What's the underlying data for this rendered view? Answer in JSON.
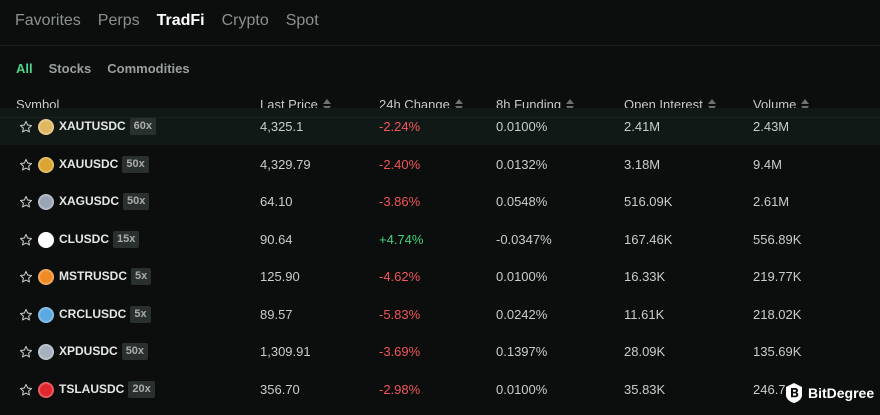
{
  "tabs": [
    "Favorites",
    "Perps",
    "TradFi",
    "Crypto",
    "Spot"
  ],
  "active_tab": "TradFi",
  "subtabs": [
    "All",
    "Stocks",
    "Commodities"
  ],
  "active_subtab": "All",
  "columns": [
    "Symbol",
    "Last Price",
    "24h Change",
    "8h Funding",
    "Open Interest",
    "Volume"
  ],
  "rows": [
    {
      "symbol": "XAUTUSDC",
      "leverage": "60x",
      "icon": "tether-gold-coin-icon",
      "icon_color": "#e0b862",
      "price": "4,325.1",
      "change": "-2.24%",
      "funding": "0.0100%",
      "oi": "2.41M",
      "volume": "2.43M"
    },
    {
      "symbol": "XAUUSDC",
      "leverage": "50x",
      "icon": "gold-coin-icon",
      "icon_color": "#d9a530",
      "price": "4,329.79",
      "change": "-2.40%",
      "funding": "0.0132%",
      "oi": "3.18M",
      "volume": "9.4M"
    },
    {
      "symbol": "XAGUSDC",
      "leverage": "50x",
      "icon": "silver-coin-icon",
      "icon_color": "#9aa4b5",
      "price": "64.10",
      "change": "-3.86%",
      "funding": "0.0548%",
      "oi": "516.09K",
      "volume": "2.61M"
    },
    {
      "symbol": "CLUSDC",
      "leverage": "15x",
      "icon": "oil-drop-icon",
      "icon_color": "#ffffff",
      "price": "90.64",
      "change": "+4.74%",
      "funding": "-0.0347%",
      "oi": "167.46K",
      "volume": "556.89K"
    },
    {
      "symbol": "MSTRUSDC",
      "leverage": "5x",
      "icon": "bitcoin-coin-icon",
      "icon_color": "#f08a24",
      "price": "125.90",
      "change": "-4.62%",
      "funding": "0.0100%",
      "oi": "16.33K",
      "volume": "219.77K"
    },
    {
      "symbol": "CRCLUSDC",
      "leverage": "5x",
      "icon": "circle-coin-icon",
      "icon_color": "#5aa9e0",
      "price": "89.57",
      "change": "-5.83%",
      "funding": "0.0242%",
      "oi": "11.61K",
      "volume": "218.02K"
    },
    {
      "symbol": "XPDUSDC",
      "leverage": "50x",
      "icon": "palladium-coin-icon",
      "icon_color": "#a7b0bd",
      "price": "1,309.91",
      "change": "-3.69%",
      "funding": "0.1397%",
      "oi": "28.09K",
      "volume": "135.69K"
    },
    {
      "symbol": "TSLAUSDC",
      "leverage": "20x",
      "icon": "tesla-coin-icon",
      "icon_color": "#e0262d",
      "price": "356.70",
      "change": "-2.98%",
      "funding": "0.0100%",
      "oi": "35.83K",
      "volume": "246.7"
    }
  ],
  "watermark": "BitDegree",
  "colors": {
    "negative": "#f2555a",
    "positive": "#3fd27f",
    "accent": "#4fd38a"
  }
}
